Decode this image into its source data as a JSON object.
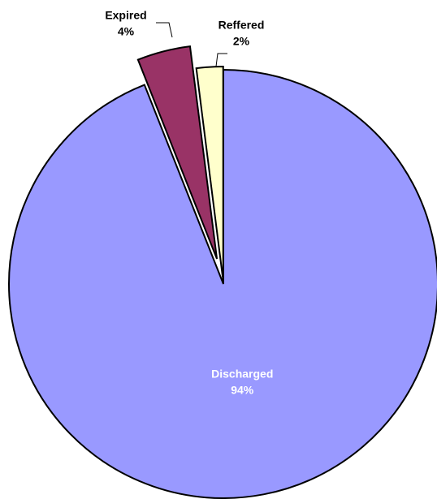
{
  "chart_data": {
    "type": "pie",
    "categories": [
      "Discharged",
      "Expired",
      "Reffered"
    ],
    "values": [
      94,
      4,
      2
    ],
    "value_labels": [
      "94%",
      "4%",
      "2%"
    ],
    "colors": [
      "#9999ff",
      "#993366",
      "#ffffcc"
    ]
  }
}
